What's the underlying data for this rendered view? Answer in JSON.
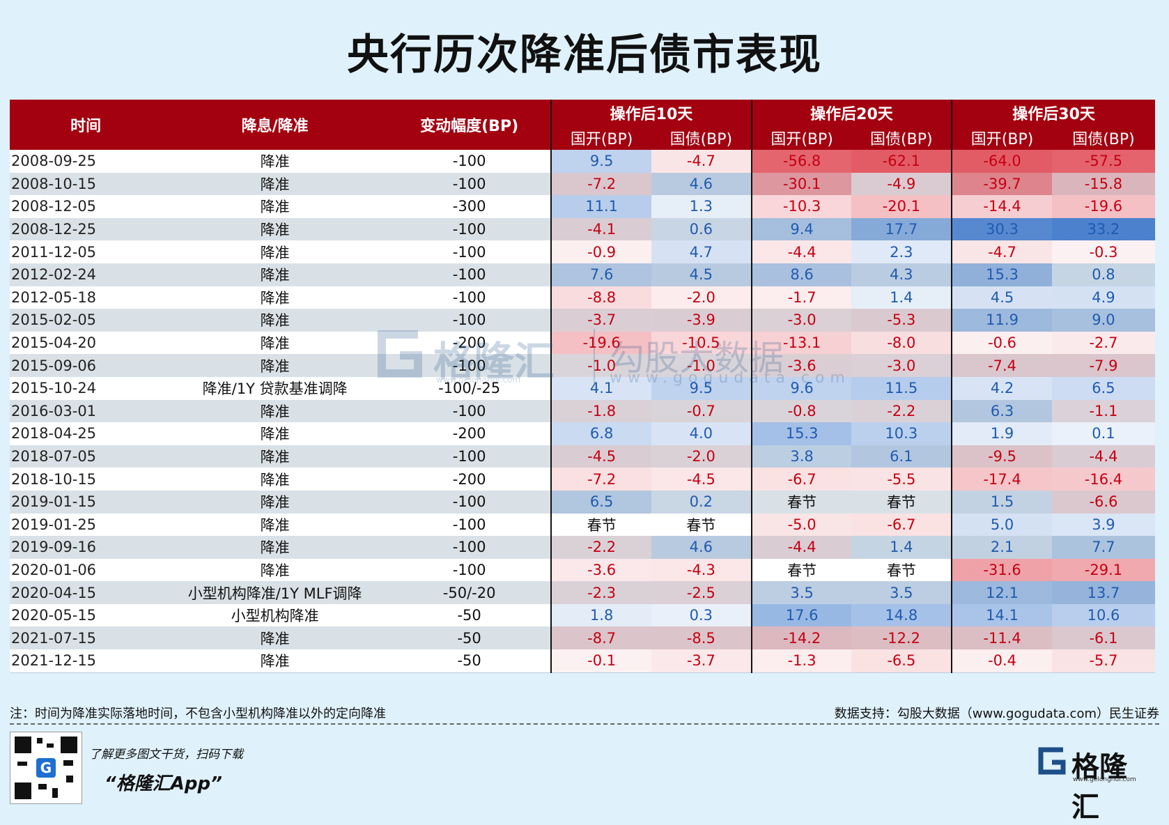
{
  "title": "央行历次降准后债市表现",
  "table": {
    "header": {
      "time": "时间",
      "type": "降息/降准",
      "change": "变动幅度(BP)",
      "groups": [
        "操作后10天",
        "操作后20天",
        "操作后30天"
      ],
      "sub": [
        "国开(BP)",
        "国债(BP)",
        "国开(BP)",
        "国债(BP)",
        "国开(BP)",
        "国债(BP)"
      ]
    },
    "rows": [
      {
        "date": "2008-09-25",
        "type": "降准",
        "change": "-100",
        "v": [
          "9.5",
          "-4.7",
          "-56.8",
          "-62.1",
          "-64.0",
          "-57.5"
        ]
      },
      {
        "date": "2008-10-15",
        "type": "降准",
        "change": "-100",
        "v": [
          "-7.2",
          "4.6",
          "-30.1",
          "-4.9",
          "-39.7",
          "-15.8"
        ]
      },
      {
        "date": "2008-12-05",
        "type": "降准",
        "change": "-300",
        "v": [
          "11.1",
          "1.3",
          "-10.3",
          "-20.1",
          "-14.4",
          "-19.6"
        ]
      },
      {
        "date": "2008-12-25",
        "type": "降准",
        "change": "-100",
        "v": [
          "-4.1",
          "0.6",
          "9.4",
          "17.7",
          "30.3",
          "33.2"
        ]
      },
      {
        "date": "2011-12-05",
        "type": "降准",
        "change": "-100",
        "v": [
          "-0.9",
          "4.7",
          "-4.4",
          "2.3",
          "-4.7",
          "-0.3"
        ]
      },
      {
        "date": "2012-02-24",
        "type": "降准",
        "change": "-100",
        "v": [
          "7.6",
          "4.5",
          "8.6",
          "4.3",
          "15.3",
          "0.8"
        ]
      },
      {
        "date": "2012-05-18",
        "type": "降准",
        "change": "-100",
        "v": [
          "-8.8",
          "-2.0",
          "-1.7",
          "1.4",
          "4.5",
          "4.9"
        ]
      },
      {
        "date": "2015-02-05",
        "type": "降准",
        "change": "-100",
        "v": [
          "-3.7",
          "-3.9",
          "-3.0",
          "-5.3",
          "11.9",
          "9.0"
        ]
      },
      {
        "date": "2015-04-20",
        "type": "降准",
        "change": "-200",
        "v": [
          "-19.6",
          "-10.5",
          "-13.1",
          "-8.0",
          "-0.6",
          "-2.7"
        ]
      },
      {
        "date": "2015-09-06",
        "type": "降准",
        "change": "-100",
        "v": [
          "-1.0",
          "-1.0",
          "-3.6",
          "-3.0",
          "-7.4",
          "-7.9"
        ]
      },
      {
        "date": "2015-10-24",
        "type": "降准/1Y 贷款基准调降",
        "change": "-100/-25",
        "v": [
          "4.1",
          "9.5",
          "9.6",
          "11.5",
          "4.2",
          "6.5"
        ]
      },
      {
        "date": "2016-03-01",
        "type": "降准",
        "change": "-100",
        "v": [
          "-1.8",
          "-0.7",
          "-0.8",
          "-2.2",
          "6.3",
          "-1.1"
        ]
      },
      {
        "date": "2018-04-25",
        "type": "降准",
        "change": "-200",
        "v": [
          "6.8",
          "4.0",
          "15.3",
          "10.3",
          "1.9",
          "0.1"
        ]
      },
      {
        "date": "2018-07-05",
        "type": "降准",
        "change": "-100",
        "v": [
          "-4.5",
          "-2.0",
          "3.8",
          "6.1",
          "-9.5",
          "-4.4"
        ]
      },
      {
        "date": "2018-10-15",
        "type": "降准",
        "change": "-200",
        "v": [
          "-7.2",
          "-4.5",
          "-6.7",
          "-5.5",
          "-17.4",
          "-16.4"
        ]
      },
      {
        "date": "2019-01-15",
        "type": "降准",
        "change": "-100",
        "v": [
          "6.5",
          "0.2",
          "春节",
          "春节",
          "1.5",
          "-6.6"
        ]
      },
      {
        "date": "2019-01-25",
        "type": "降准",
        "change": "-100",
        "v": [
          "春节",
          "春节",
          "-5.0",
          "-6.7",
          "5.0",
          "3.9"
        ]
      },
      {
        "date": "2019-09-16",
        "type": "降准",
        "change": "-100",
        "v": [
          "-2.2",
          "4.6",
          "-4.4",
          "1.4",
          "2.1",
          "7.7"
        ]
      },
      {
        "date": "2020-01-06",
        "type": "降准",
        "change": "-100",
        "v": [
          "-3.6",
          "-4.3",
          "春节",
          "春节",
          "-31.6",
          "-29.1"
        ]
      },
      {
        "date": "2020-04-15",
        "type": "小型机构降准/1Y MLF调降",
        "change": "-50/-20",
        "v": [
          "-2.3",
          "-2.5",
          "3.5",
          "3.5",
          "12.1",
          "13.7"
        ]
      },
      {
        "date": "2020-05-15",
        "type": "小型机构降准",
        "change": "-50",
        "v": [
          "1.8",
          "0.3",
          "17.6",
          "14.8",
          "14.1",
          "10.6"
        ]
      },
      {
        "date": "2021-07-15",
        "type": "降准",
        "change": "-50",
        "v": [
          "-8.7",
          "-8.5",
          "-14.2",
          "-12.2",
          "-11.4",
          "-6.1"
        ]
      },
      {
        "date": "2021-12-15",
        "type": "降准",
        "change": "-50",
        "v": [
          "-0.1",
          "-3.7",
          "-1.3",
          "-6.5",
          "-0.4",
          "-5.7"
        ]
      }
    ]
  },
  "colors": {
    "header": "#a30010",
    "neg": "#e0505a",
    "pos": "#3d78cc"
  },
  "note": "注：时间为降准实际落地时间，不包含小型机构降准以外的定向降准",
  "source": "数据支持：勾股大数据（www.gogudata.com）民生证券",
  "promo": {
    "line1": "了解更多图文干货，扫码下载",
    "line2": "“格隆汇App”"
  },
  "logo": {
    "name": "格隆汇",
    "url": "www.gelonghui.com",
    "mark_icon": "gelonghui-g-logo"
  },
  "watermark": {
    "name1": "格隆汇",
    "url1": "www.gelonghui.com",
    "name2": "勾股大数据",
    "url2": "www.gogudata.com"
  },
  "qr_icon": "qr-code-icon"
}
